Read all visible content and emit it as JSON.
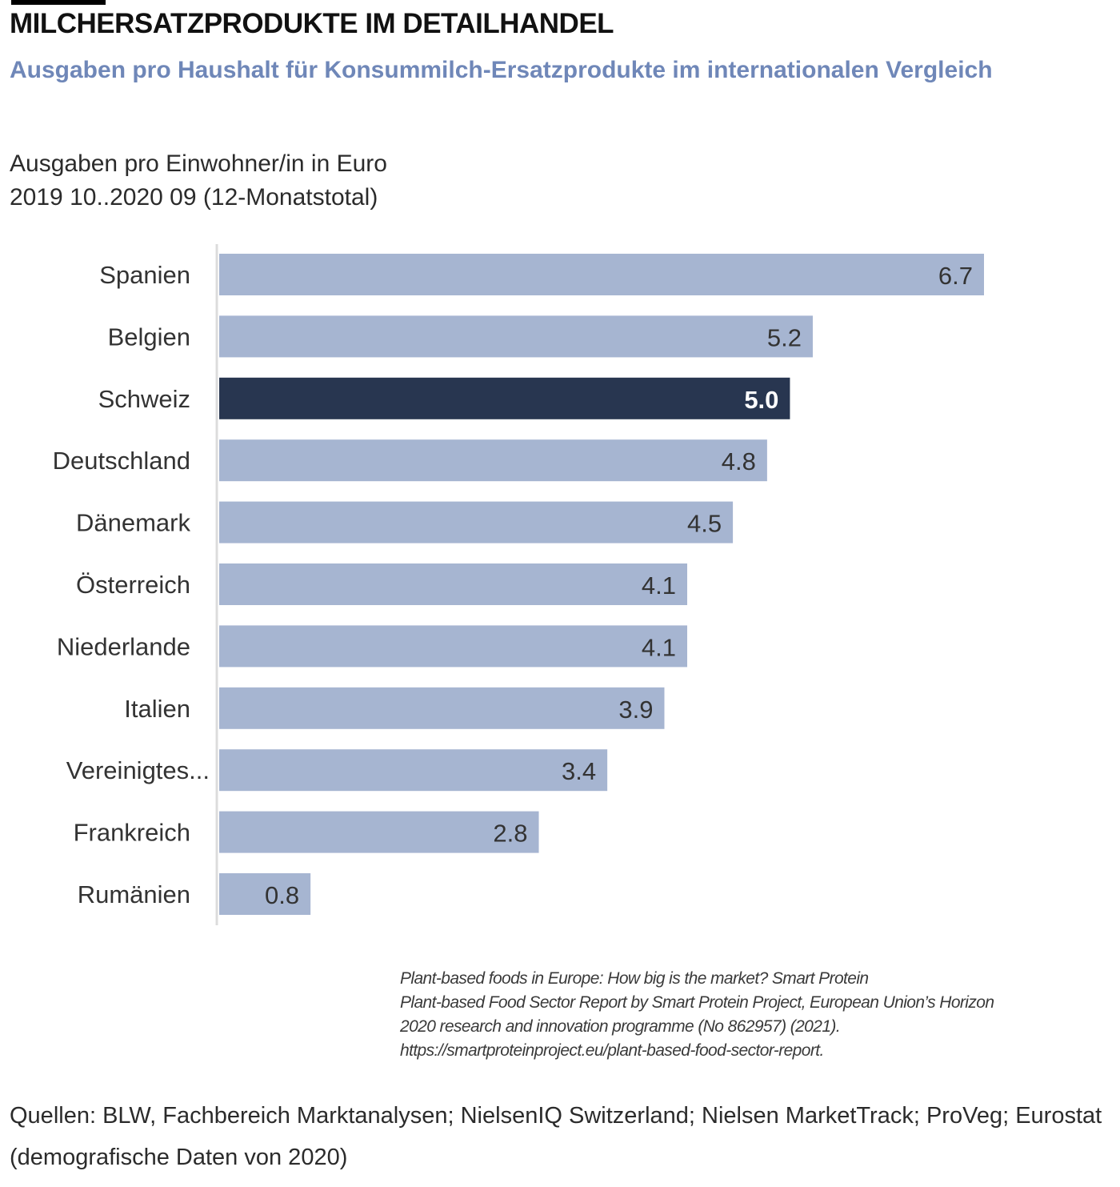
{
  "header": {
    "title": "MILCHERSATZPRODUKTE IM DETAILHANDEL",
    "subtitle": "Ausgaben pro Haushalt für Konsummilch-Ersatzprodukte  im internationalen Vergleich",
    "unit_line1": "Ausgaben pro Einwohner/in in Euro",
    "unit_line2": "2019 10..2020  09 (12-Monatstotal)"
  },
  "colors": {
    "bar_default": "#a6b5d1",
    "bar_highlight": "#283650",
    "label_default": "#333333",
    "label_highlight": "#ffffff",
    "subtitle": "#6f87b8"
  },
  "chart_data": {
    "type": "bar",
    "orientation": "horizontal",
    "title": "MILCHERSATZPRODUKTE IM DETAILHANDEL",
    "subtitle": "Ausgaben pro Haushalt für Konsummilch-Ersatzprodukte  im internationalen Vergleich",
    "xlabel": "Ausgaben pro Einwohner/in in Euro",
    "ylabel": "",
    "categories": [
      "Spanien",
      "Belgien",
      "Schweiz",
      "Deutschland",
      "Dänemark",
      "Österreich",
      "Niederlande",
      "Italien",
      "Vereinigtes...",
      "Frankreich",
      "Rumänien"
    ],
    "values": [
      6.7,
      5.2,
      5.0,
      4.8,
      4.5,
      4.1,
      4.1,
      3.9,
      3.4,
      2.8,
      0.8
    ],
    "data_labels": [
      "6.7",
      "5.2",
      "5.0",
      "4.8",
      "4.5",
      "4.1",
      "4.1",
      "3.9",
      "3.4",
      "2.8",
      "0.8"
    ],
    "highlight": "Schweiz",
    "xlim": [
      0,
      6.7
    ],
    "grid": false,
    "legend": "none"
  },
  "footnote": {
    "line1": "Plant-based foods in Europe: How big is the market? Smart Protein",
    "line2": "Plant-based Food Sector Report by Smart Protein Project, European Union’s Horizon",
    "line3": "2020 research and innovation programme (No 862957) (2021).",
    "line4": "https://smartproteinproject.eu/plant-based-food-sector-report."
  },
  "sources": {
    "text": "Quellen: BLW, Fachbereich  Marktanalysen;  NielsenIQ Switzerland;  Nielsen MarketTrack; ProVeg; Eurostat (demografische  Daten von 2020)"
  }
}
